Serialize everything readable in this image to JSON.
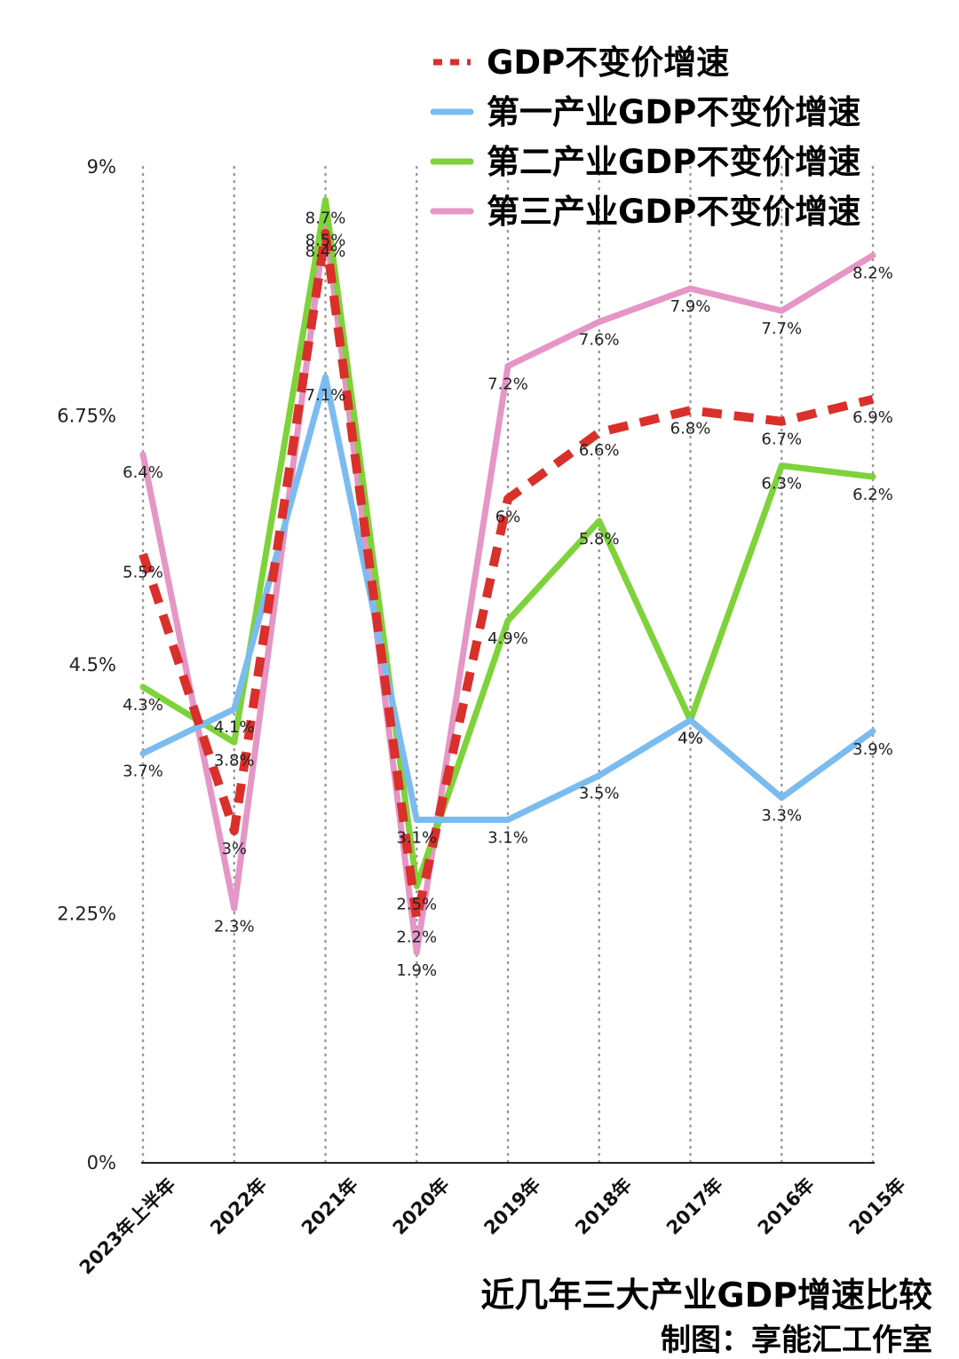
{
  "chart_data": {
    "type": "line",
    "title": "近几年三大产业GDP增速比较",
    "credit": "制图：享能汇工作室",
    "categories": [
      "2023年上半年",
      "2022年",
      "2021年",
      "2020年",
      "2019年",
      "2018年",
      "2017年",
      "2016年",
      "2015年"
    ],
    "y_ticks": [
      "0%",
      "2.25%",
      "4.5%",
      "6.75%",
      "9%"
    ],
    "ylim": [
      0,
      9
    ],
    "grid": "vertical dotted",
    "legend_position": "top-right",
    "series": [
      {
        "name": "GDP不变价增速",
        "color": "#d9302b",
        "style": "dashed",
        "values": [
          5.5,
          3,
          8.4,
          2.2,
          6,
          6.6,
          6.8,
          6.7,
          6.9
        ],
        "labels": [
          "5.5%",
          "3%",
          "8.4%",
          "2.2%",
          "6%",
          "6.6%",
          "6.8%",
          "6.7%",
          "6.9%"
        ]
      },
      {
        "name": "第一产业GDP不变价增速",
        "color": "#7bbcf0",
        "style": "solid",
        "values": [
          3.7,
          4.1,
          7.1,
          3.1,
          3.1,
          3.5,
          4,
          3.3,
          3.9
        ],
        "labels": [
          "3.7%",
          "4.1%",
          "7.1%",
          "3.1%",
          "3.1%",
          "3.5%",
          "4%",
          "3.3%",
          "3.9%"
        ]
      },
      {
        "name": "第二产业GDP不变价增速",
        "color": "#7ed23a",
        "style": "solid",
        "values": [
          4.3,
          3.8,
          8.7,
          2.5,
          4.9,
          5.8,
          4,
          6.3,
          6.2
        ],
        "labels": [
          "4.3%",
          "3.8%",
          "8.7%",
          "2.5%",
          "4.9%",
          "5.8%",
          "4%",
          "6.3%",
          "6.2%"
        ]
      },
      {
        "name": "第三产业GDP不变价增速",
        "color": "#e596c6",
        "style": "solid",
        "values": [
          6.4,
          2.3,
          8.5,
          1.9,
          7.2,
          7.6,
          7.9,
          7.7,
          8.2
        ],
        "labels": [
          "6.4%",
          "2.3%",
          "8.5%",
          "1.9%",
          "7.2%",
          "7.6%",
          "7.9%",
          "7.7%",
          "8.2%"
        ]
      }
    ]
  }
}
